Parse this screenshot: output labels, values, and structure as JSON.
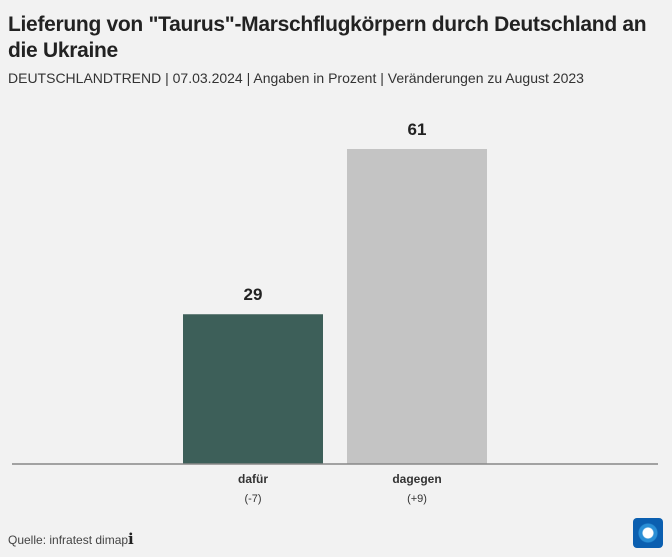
{
  "header": {
    "title": "Lieferung von \"Taurus\"-Marschflugkörpern durch Deutschland an die Ukraine",
    "subtitle": "DEUTSCHLANDTREND | 07.03.2024 | Angaben in Prozent | Veränderungen zu August 2023"
  },
  "chart_data": {
    "type": "bar",
    "categories": [
      "dafür",
      "dagegen"
    ],
    "changes": [
      "(-7)",
      "(+9)"
    ],
    "values": [
      29,
      61
    ],
    "colors": [
      "#3d5f59",
      "#c4c4c4"
    ],
    "ylim": [
      0,
      61
    ],
    "grid": false
  },
  "footer": {
    "source": "Quelle: infratest dimap",
    "info_icon": "info-icon",
    "logo": "tagesschau-logo"
  }
}
